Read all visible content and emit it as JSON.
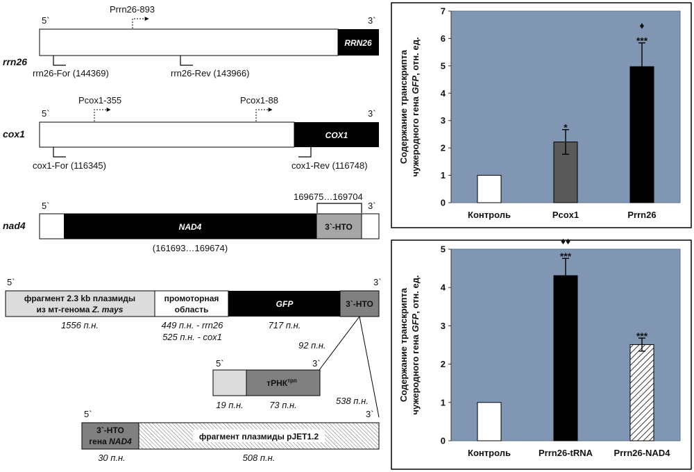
{
  "rrn26": {
    "name": "rrn26",
    "end5": "5`",
    "end3": "3`",
    "gene": "RRN26",
    "promoter": "Prrn26-893",
    "primer_for": "rrn26-For (144369)",
    "primer_rev": "rrn26-Rev (143966)"
  },
  "cox1": {
    "name": "cox1",
    "end5": "5`",
    "end3": "3`",
    "gene": "COX1",
    "promoter_a": "Pcox1-355",
    "promoter_b": "Pcox1-88",
    "primer_for": "cox1-For (116345)",
    "primer_rev": "cox1-Rev (116748)"
  },
  "nad4": {
    "name": "nad4",
    "end5": "5`",
    "end3": "3`",
    "gene": "NAD4",
    "utr": "3`-НТО",
    "utr_range": "169675…169704",
    "gene_range": "(161693…169674)"
  },
  "construct": {
    "end5": "5`",
    "end3": "3`",
    "frag_line1": "фрагмент 2.3 kb плазмиды",
    "frag_line2": "из мт-генома",
    "frag_species": "Z. mays",
    "frag_len": "1556 п.н.",
    "prom_line1": "промоторная",
    "prom_line2": "область",
    "prom_len1": "449 п.н. - rrn26",
    "prom_len2": "525 п.н. - cox1",
    "gfp": "GFP",
    "gfp_len": "717 п.н.",
    "utr": "3`-НТО",
    "utr_len": "92 п.н."
  },
  "trna": {
    "end5": "5`",
    "end3": "3`",
    "label": "тРНК",
    "sup": "трп",
    "len_a": "19 п.н.",
    "len_b": "73 п.н.",
    "total": "538 п.н."
  },
  "nad4utr": {
    "end5": "5`",
    "end3": "3`",
    "line1": "3`-НТО",
    "line2_prefix": "гена",
    "line2_gene": "NAD4",
    "plasmid": "фрагмент плазмиды pJET1.2",
    "len_a": "30 п.н.",
    "len_b": "508 п.н."
  },
  "colors": {
    "plot_bg": "#8096b3",
    "plot_border": "#5d7391",
    "utr_gray": "#a6a6a6",
    "dark_gray": "#808080",
    "light_gray": "#dcdcdc",
    "bar_gray": "#595959"
  },
  "chart_data": [
    {
      "type": "bar",
      "categories": [
        "Контроль",
        "Pcox1",
        "Prrn26"
      ],
      "values": [
        1,
        2.22,
        4.97
      ],
      "errors": [
        0,
        0.45,
        0.87
      ],
      "colors": [
        "#ffffff",
        "#595959",
        "#000000"
      ],
      "patterns": [
        "solid",
        "solid",
        "solid"
      ],
      "annotations": [
        [
          "",
          ""
        ],
        [
          "*",
          ""
        ],
        [
          "***",
          "♦"
        ]
      ],
      "ylabel_line1": "Содержание транскрипта",
      "ylabel_line2_prefix": "чужеродного гена ",
      "ylabel_line2_gene": "GFP",
      "ylabel_line2_suffix": ", отн. ед.",
      "ylim": [
        0,
        7
      ],
      "yticks": [
        "0",
        "1",
        "2",
        "3",
        "4",
        "5",
        "6",
        "7"
      ],
      "grid": false,
      "legend": "none"
    },
    {
      "type": "bar",
      "categories": [
        "Контроль",
        "Prrn26-tRNA",
        "Prrn26-NAD4"
      ],
      "values": [
        1,
        4.31,
        2.51
      ],
      "errors": [
        0,
        0.45,
        0.17
      ],
      "colors": [
        "#ffffff",
        "#000000",
        "#ffffff"
      ],
      "patterns": [
        "solid",
        "solid",
        "hatch"
      ],
      "annotations": [
        [
          "",
          ""
        ],
        [
          "***",
          "♦♦"
        ],
        [
          "***",
          ""
        ]
      ],
      "ylabel_line1": "Содержание транскрипта",
      "ylabel_line2_prefix": "чужеродного гена ",
      "ylabel_line2_gene": "GFP",
      "ylabel_line2_suffix": ", отн. ед.",
      "ylim": [
        0,
        5
      ],
      "yticks": [
        "0",
        "1",
        "2",
        "3",
        "4",
        "5"
      ],
      "grid": false,
      "legend": "none"
    }
  ]
}
